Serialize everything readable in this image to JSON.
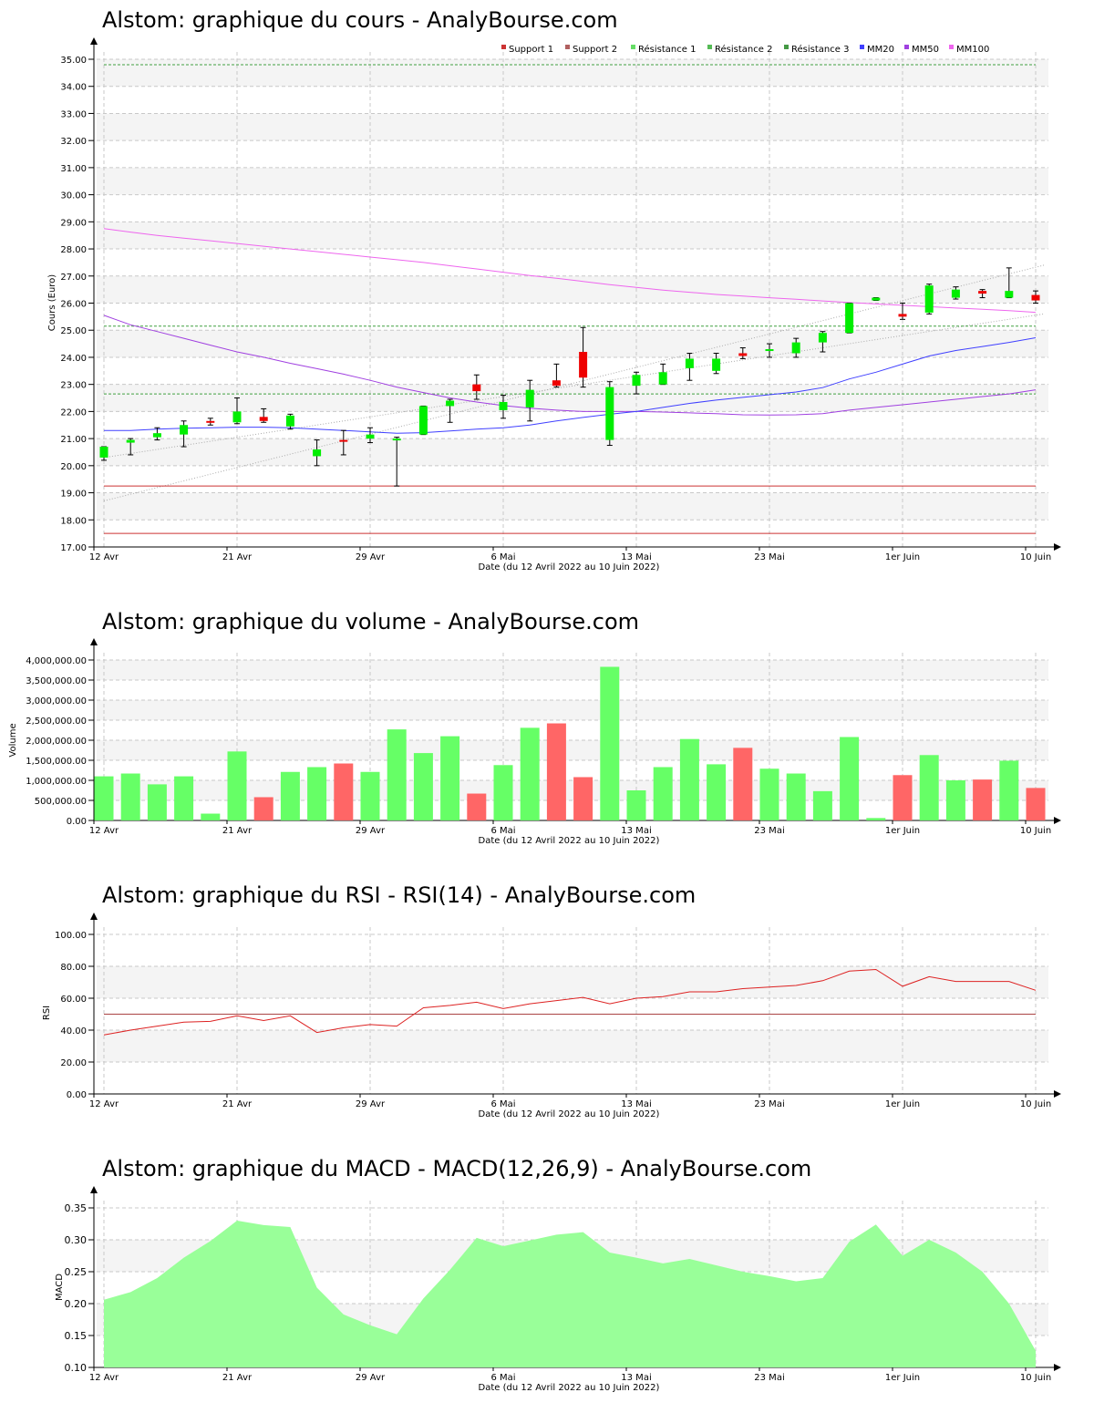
{
  "colors": {
    "up": "#00ee00",
    "down": "#ee0000",
    "vol_up": "#66ff66",
    "vol_down": "#ff6666",
    "mm20": "#4040ff",
    "mm50": "#a040e0",
    "mm100": "#ee66ee",
    "support": "#cc3333",
    "resistance": "#40a040",
    "rsi": "#dd2222",
    "rsi_ref": "#aa4444",
    "macd_fill": "#99ff99"
  },
  "x_ticks": [
    "12 Avr",
    "21 Avr",
    "29 Avr",
    "6 Mai",
    "13 Mai",
    "23 Mai",
    "1er Juin",
    "10 Juin"
  ],
  "chart_data": [
    {
      "id": "price",
      "type": "candlestick",
      "title": "Alstom: graphique du cours - AnalyBourse.com",
      "xlabel": "Date (du 12 Avril 2022 au 10 Juin 2022)",
      "ylabel": "Cours (Euro)",
      "ylim": [
        17,
        35
      ],
      "yticks": [
        "17.00",
        "18.00",
        "19.00",
        "20.00",
        "21.00",
        "22.00",
        "23.00",
        "24.00",
        "25.00",
        "26.00",
        "27.00",
        "28.00",
        "29.00",
        "30.00",
        "31.00",
        "32.00",
        "33.00",
        "34.00",
        "35.00"
      ],
      "legend": [
        "Support 1",
        "Support 2",
        "Résistance 1",
        "Résistance 2",
        "Résistance 3",
        "MM20",
        "MM50",
        "MM100"
      ],
      "legend_position": "top-right",
      "levels": {
        "support1": 19.25,
        "support2": 17.5,
        "resistance1": 22.65,
        "resistance2": 25.15,
        "resistance3": 34.8
      },
      "candles": [
        {
          "o": 20.3,
          "h": 20.7,
          "l": 20.2,
          "c": 20.7
        },
        {
          "o": 20.85,
          "h": 21.0,
          "l": 20.4,
          "c": 20.95
        },
        {
          "o": 21.05,
          "h": 21.4,
          "l": 20.95,
          "c": 21.2
        },
        {
          "o": 21.15,
          "h": 21.65,
          "l": 20.7,
          "c": 21.5
        },
        {
          "o": 21.65,
          "h": 21.75,
          "l": 21.5,
          "c": 21.6
        },
        {
          "o": 21.6,
          "h": 22.5,
          "l": 21.55,
          "c": 22.0
        },
        {
          "o": 21.8,
          "h": 22.1,
          "l": 21.6,
          "c": 21.65
        },
        {
          "o": 21.45,
          "h": 21.9,
          "l": 21.35,
          "c": 21.85
        },
        {
          "o": 20.35,
          "h": 20.95,
          "l": 20.0,
          "c": 20.6
        },
        {
          "o": 20.95,
          "h": 21.3,
          "l": 20.4,
          "c": 20.9
        },
        {
          "o": 21.0,
          "h": 21.4,
          "l": 20.85,
          "c": 21.15
        },
        {
          "o": 20.95,
          "h": 21.05,
          "l": 19.25,
          "c": 21.0
        },
        {
          "o": 21.15,
          "h": 22.2,
          "l": 21.15,
          "c": 22.2
        },
        {
          "o": 22.2,
          "h": 22.45,
          "l": 21.6,
          "c": 22.4
        },
        {
          "o": 23.0,
          "h": 23.35,
          "l": 22.45,
          "c": 22.75
        },
        {
          "o": 22.05,
          "h": 22.6,
          "l": 21.75,
          "c": 22.35
        },
        {
          "o": 22.15,
          "h": 23.15,
          "l": 21.65,
          "c": 22.8
        },
        {
          "o": 23.15,
          "h": 23.75,
          "l": 22.9,
          "c": 22.95
        },
        {
          "o": 24.2,
          "h": 25.1,
          "l": 22.9,
          "c": 23.25
        },
        {
          "o": 20.95,
          "h": 23.1,
          "l": 20.75,
          "c": 22.9
        },
        {
          "o": 22.95,
          "h": 23.45,
          "l": 22.65,
          "c": 23.35
        },
        {
          "o": 23.0,
          "h": 23.75,
          "l": 23.0,
          "c": 23.45
        },
        {
          "o": 23.6,
          "h": 24.15,
          "l": 23.15,
          "c": 23.95
        },
        {
          "o": 23.5,
          "h": 24.15,
          "l": 23.4,
          "c": 23.95
        },
        {
          "o": 24.15,
          "h": 24.35,
          "l": 23.95,
          "c": 24.05
        },
        {
          "o": 24.25,
          "h": 24.5,
          "l": 24.0,
          "c": 24.3
        },
        {
          "o": 24.15,
          "h": 24.7,
          "l": 24.0,
          "c": 24.55
        },
        {
          "o": 24.55,
          "h": 24.95,
          "l": 24.2,
          "c": 24.9
        },
        {
          "o": 24.9,
          "h": 26.0,
          "l": 24.9,
          "c": 26.0
        },
        {
          "o": 26.1,
          "h": 26.2,
          "l": 26.1,
          "c": 26.2
        },
        {
          "o": 25.6,
          "h": 26.0,
          "l": 25.4,
          "c": 25.5
        },
        {
          "o": 25.65,
          "h": 26.7,
          "l": 25.6,
          "c": 26.65
        },
        {
          "o": 26.2,
          "h": 26.6,
          "l": 26.15,
          "c": 26.5
        },
        {
          "o": 26.45,
          "h": 26.5,
          "l": 26.2,
          "c": 26.35
        },
        {
          "o": 26.2,
          "h": 27.3,
          "l": 26.2,
          "c": 26.45
        },
        {
          "o": 26.3,
          "h": 26.45,
          "l": 26.0,
          "c": 26.1
        }
      ],
      "mm20": [
        21.3,
        21.3,
        21.35,
        21.38,
        21.4,
        21.42,
        21.42,
        21.4,
        21.35,
        21.3,
        21.25,
        21.2,
        21.22,
        21.28,
        21.35,
        21.4,
        21.5,
        21.65,
        21.78,
        21.9,
        22.0,
        22.15,
        22.3,
        22.42,
        22.52,
        22.62,
        22.72,
        22.88,
        23.2,
        23.45,
        23.75,
        24.05,
        24.25,
        24.4,
        24.55,
        24.72
      ],
      "mm50": [
        25.55,
        25.2,
        24.95,
        24.7,
        24.45,
        24.2,
        24.0,
        23.78,
        23.58,
        23.38,
        23.15,
        22.9,
        22.7,
        22.5,
        22.35,
        22.22,
        22.12,
        22.05,
        22.0,
        22.0,
        22.0,
        21.98,
        21.95,
        21.92,
        21.88,
        21.87,
        21.88,
        21.92,
        22.05,
        22.15,
        22.25,
        22.35,
        22.45,
        22.55,
        22.65,
        22.8
      ],
      "mm100": [
        28.75,
        28.62,
        28.5,
        28.4,
        28.3,
        28.2,
        28.1,
        28.0,
        27.9,
        27.8,
        27.7,
        27.6,
        27.5,
        27.38,
        27.26,
        27.14,
        27.02,
        26.92,
        26.8,
        26.68,
        26.58,
        26.48,
        26.4,
        26.32,
        26.26,
        26.2,
        26.14,
        26.08,
        26.02,
        25.97,
        25.92,
        25.87,
        25.82,
        25.77,
        25.72,
        25.66
      ]
    },
    {
      "id": "volume",
      "type": "bar",
      "title": "Alstom: graphique du volume - AnalyBourse.com",
      "xlabel": "Date (du 12 Avril 2022 au 10 Juin 2022)",
      "ylabel": "Volume",
      "ylim": [
        0,
        4000000
      ],
      "yticks": [
        "0.00",
        "500,000.00",
        "1,000,000.00",
        "1,500,000.00",
        "2,000,000.00",
        "2,500,000.00",
        "3,000,000.00",
        "3,500,000.00",
        "4,000,000.00"
      ],
      "values": [
        1100000,
        1170000,
        900000,
        1100000,
        170000,
        1720000,
        580000,
        1210000,
        1330000,
        1420000,
        1210000,
        2270000,
        1680000,
        2100000,
        670000,
        1380000,
        2310000,
        2420000,
        1080000,
        3830000,
        750000,
        1330000,
        2030000,
        1400000,
        1810000,
        1290000,
        1170000,
        730000,
        2080000,
        60000,
        1130000,
        1630000,
        1000000,
        1020000,
        1490000,
        810000
      ],
      "up": [
        true,
        true,
        true,
        true,
        true,
        true,
        false,
        true,
        true,
        false,
        true,
        true,
        true,
        true,
        false,
        true,
        true,
        false,
        false,
        true,
        true,
        true,
        true,
        true,
        false,
        true,
        true,
        true,
        true,
        true,
        false,
        true,
        true,
        false,
        true,
        false
      ]
    },
    {
      "id": "rsi",
      "type": "line",
      "title": "Alstom: graphique du RSI - RSI(14) - AnalyBourse.com",
      "xlabel": "Date (du 12 Avril 2022 au 10 Juin 2022)",
      "ylabel": "RSI",
      "ylim": [
        0,
        100
      ],
      "yticks": [
        "0.00",
        "20.00",
        "40.00",
        "60.00",
        "80.00",
        "100.00"
      ],
      "reference": 50,
      "values": [
        37,
        40,
        42.5,
        45,
        45.5,
        49,
        46,
        49,
        38.5,
        41.5,
        43.5,
        42.5,
        54,
        55.5,
        57.5,
        53.5,
        56.5,
        58.5,
        60.5,
        56.5,
        60,
        61,
        64,
        64,
        66,
        67,
        68,
        71,
        77,
        78,
        67.5,
        73.5,
        70.5,
        70.5,
        70.5,
        65
      ]
    },
    {
      "id": "macd",
      "type": "area",
      "title": "Alstom: graphique du MACD - MACD(12,26,9) - AnalyBourse.com",
      "xlabel": "Date (du 12 Avril 2022 au 10 Juin 2022)",
      "ylabel": "MACD",
      "ylim": [
        0.1,
        0.35
      ],
      "yticks": [
        "0.10",
        "0.15",
        "0.20",
        "0.25",
        "0.30",
        "0.35"
      ],
      "values": [
        0.206,
        0.218,
        0.24,
        0.272,
        0.298,
        0.33,
        0.323,
        0.32,
        0.225,
        0.183,
        0.166,
        0.152,
        0.208,
        0.253,
        0.303,
        0.29,
        0.299,
        0.308,
        0.312,
        0.28,
        0.272,
        0.263,
        0.27,
        0.26,
        0.25,
        0.243,
        0.235,
        0.24,
        0.297,
        0.324,
        0.275,
        0.3,
        0.28,
        0.25,
        0.2,
        0.126
      ]
    }
  ]
}
